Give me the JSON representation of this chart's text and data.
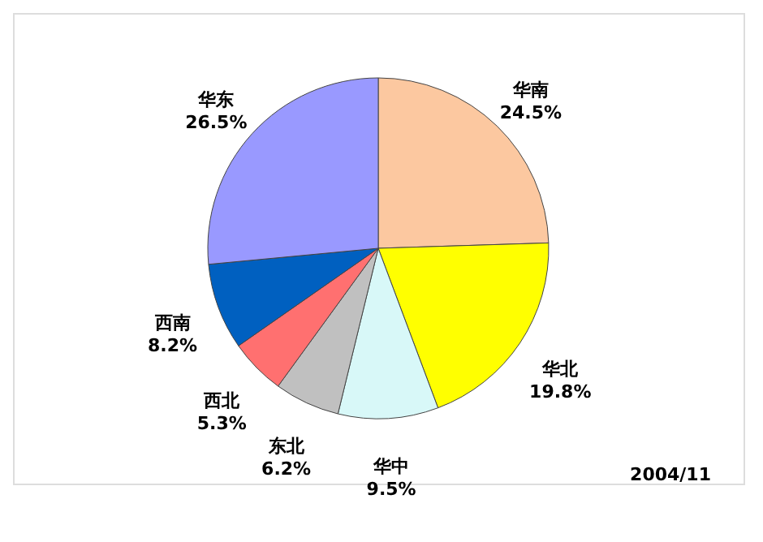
{
  "chart_data": {
    "type": "pie",
    "categories": [
      "华南",
      "华北",
      "华中",
      "东北",
      "西北",
      "西南",
      "华东"
    ],
    "values": [
      24.5,
      19.8,
      9.5,
      6.2,
      5.3,
      8.2,
      26.5
    ],
    "value_labels": [
      "24.5%",
      "19.8%",
      "9.5%",
      "6.2%",
      "5.3%",
      "8.2%",
      "26.5%"
    ],
    "colors": [
      "#fcc8a0",
      "#ffff00",
      "#d8f8f8",
      "#c0c0c0",
      "#ff7070",
      "#0060c0",
      "#9999ff"
    ],
    "annotations": [
      "2004/11"
    ],
    "legend": false
  }
}
